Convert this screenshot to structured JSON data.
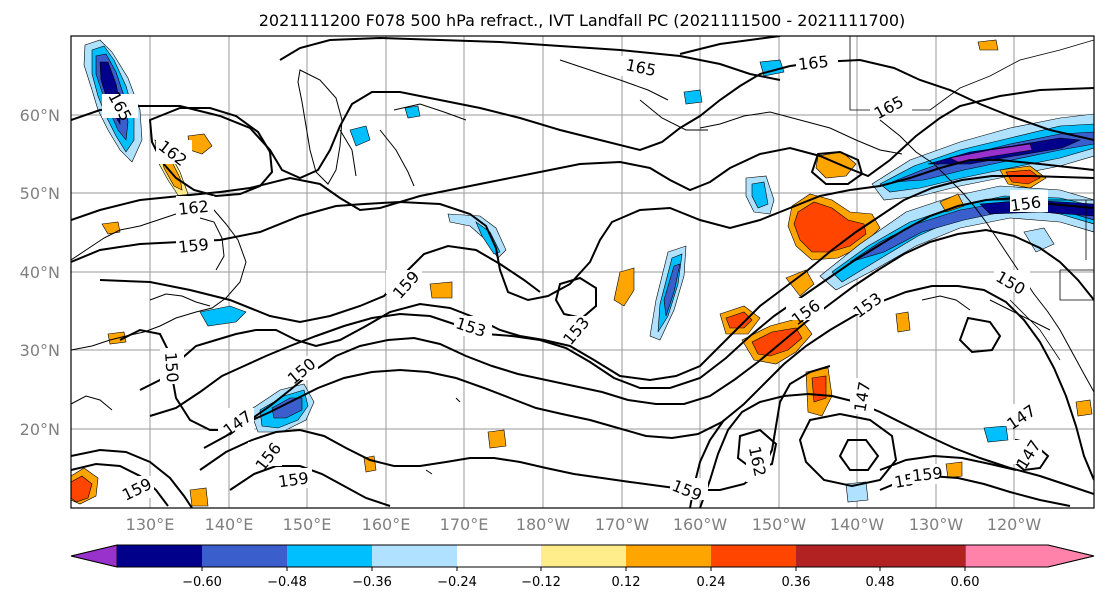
{
  "title": "2021111200 F078 500 hPa refract., IVT Landfall PC (2021111500 - 2021111700)",
  "map": {
    "x_ticks": [
      "130°E",
      "140°E",
      "150°E",
      "160°E",
      "170°E",
      "180°W",
      "170°W",
      "160°W",
      "150°W",
      "140°W",
      "130°W",
      "120°W"
    ],
    "y_ticks": [
      "60°N",
      "50°N",
      "40°N",
      "30°N",
      "20°N"
    ],
    "contour_color": "#000000",
    "contour_labels": [
      "165",
      "165",
      "165",
      "162",
      "162",
      "159",
      "159",
      "153",
      "153",
      "156",
      "153",
      "150",
      "150",
      "150",
      "147",
      "147",
      "147",
      "147",
      "159",
      "159",
      "162",
      "159",
      "159",
      "159",
      "156",
      "156",
      "165"
    ]
  },
  "colorbar": {
    "colors": [
      "#9932cc",
      "#00008b",
      "#3a5fcd",
      "#00bfff",
      "#b0e2ff",
      "#ffffff",
      "#ffec8b",
      "#ffa500",
      "#ff4500",
      "#b22222",
      "#ff82ab"
    ],
    "tick_labels": [
      "−0.60",
      "−0.48",
      "−0.36",
      "−0.24",
      "−0.12",
      "0.12",
      "0.24",
      "0.36",
      "0.48",
      "0.60"
    ]
  }
}
